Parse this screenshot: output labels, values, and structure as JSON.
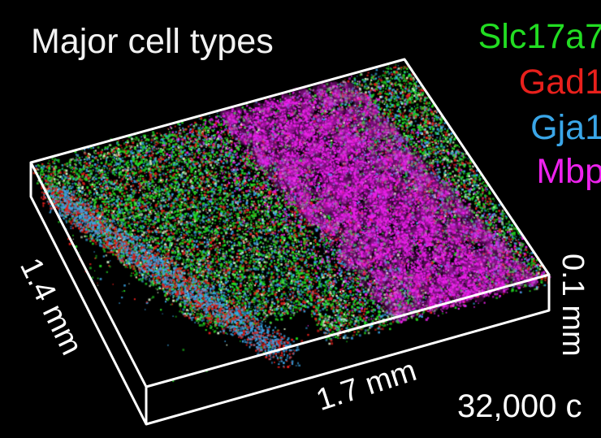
{
  "title": "Major cell types",
  "legend": [
    {
      "label": "Slc17a7",
      "color": "#22dd22"
    },
    {
      "label": "Gad1",
      "color": "#e8201c"
    },
    {
      "label": "Gja1",
      "color": "#3aa6e8"
    },
    {
      "label": "Mbp",
      "color": "#ee22ee"
    }
  ],
  "dimensions": {
    "depth": "1.4 mm",
    "width": "1.7 mm",
    "thickness": "0.1 mm"
  },
  "cell_count": "32,000 c",
  "background_color": "#000000",
  "box_color": "#ffffff"
}
